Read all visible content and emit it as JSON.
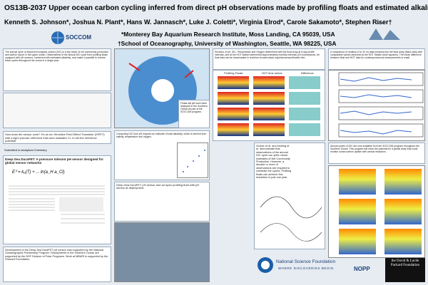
{
  "header": {
    "title": "OS13B-2037 Upper ocean carbon cycling inferred from direct pH observations made by profiling floats and estimated alkalinity",
    "authors": "Kenneth S. Johnson*, Joshua N. Plant*, Hans W. Jannasch*, Luke J. Coletti*, Virginia Elrod*, Carole Sakamoto*, Stephen Riser†",
    "affiliations": [
      "*Monterey Bay Aquarium Research Institute, Moss Landing, CA 95039, USA",
      "†School of Oceanography, University of Washington, Seattle, WA 98225, USA"
    ]
  },
  "logos": {
    "soccom": "SOCCOM",
    "mbari": "MBARI",
    "nsf": "National Science Foundation",
    "nsf_tag": "WHERE DISCOVERIES BEGIN",
    "nopp": "NOPP",
    "packard": "the David & Lucile Packard Foundation"
  },
  "sections": {
    "intro": "The annual cycle of dissolved inorganic carbon (DIC) is a key tracer of net community production and carbon export in the upper ocean. Observations of the annual DIC cycle from profiling floats equipped with pH sensors, combined with estimated alkalinity, now make it possible to resolve these cycles throughout the ocean in a single year.",
    "sensor": "How does the sensor work? It's an ion Sensitive Field Effect Transistor (ISFET) with a AgCl pseudo reference that uses seawater Cl- to set the reference potential.",
    "submitted": "Submitted to Analytical Chemistry",
    "paper_title": "Deep-Sea DuraFET: A pressure tolerant pH sensor designed for global sensor networks",
    "photo_caption": "Deep-Sea DuraFET pH sensor and an Apex profiling float with pH sensor at deployment.",
    "funding": "Development of the Deep-Sea DuraFET pH sensor was supported by the National Oceanographic Partnership Program. Deployments in the Southern Ocean are supported by the NSF Division of Polar Programs. Work at MBARI is supported by the Packard Foundation.",
    "sections_text": "Sections of pH, DIC, Temperature and Oxygen determined with the float array at 5-day profile intervals, and at the HOT station determined approximately monthly intervals (20 cruises/year). All float data can be downloaded in real time at www.mbari.org/chemsensor/floatviz.htm",
    "panel_labels": [
      "Profiling Floats",
      "HOT time series",
      "Difference"
    ],
    "comparison": "A comparison of shallow (0 to 20 m) data measured by the float array (black dots) with comparable values observed at the HOT Station (blue squares). The mean difference between float and HOT data for contemporaneous measurements is small.",
    "map_caption": "Floats will yet have been deployed in the Southern Ocean as part of the SOCCOM program.",
    "alkalinity": "Computing DIC from pH requires an estimate of total alkalinity, which is derived from salinity, temperature and oxygen.",
    "ncp": "Gruber et al. and Keeling et al. demonstrate that observations of the annual DIC cycle can yield robust estimates of Net Community Production. However, a decade or more of observations are required to constrain the cycles. Profiling floats can achieve this resolution in just one year.",
    "annual": "Annual cycles of DIC are now available from the SOCCOM program throughout the Southern Ocean. This program will show the potential for a global array that could monitor ocean carbon uptake with annual resolution."
  }
}
